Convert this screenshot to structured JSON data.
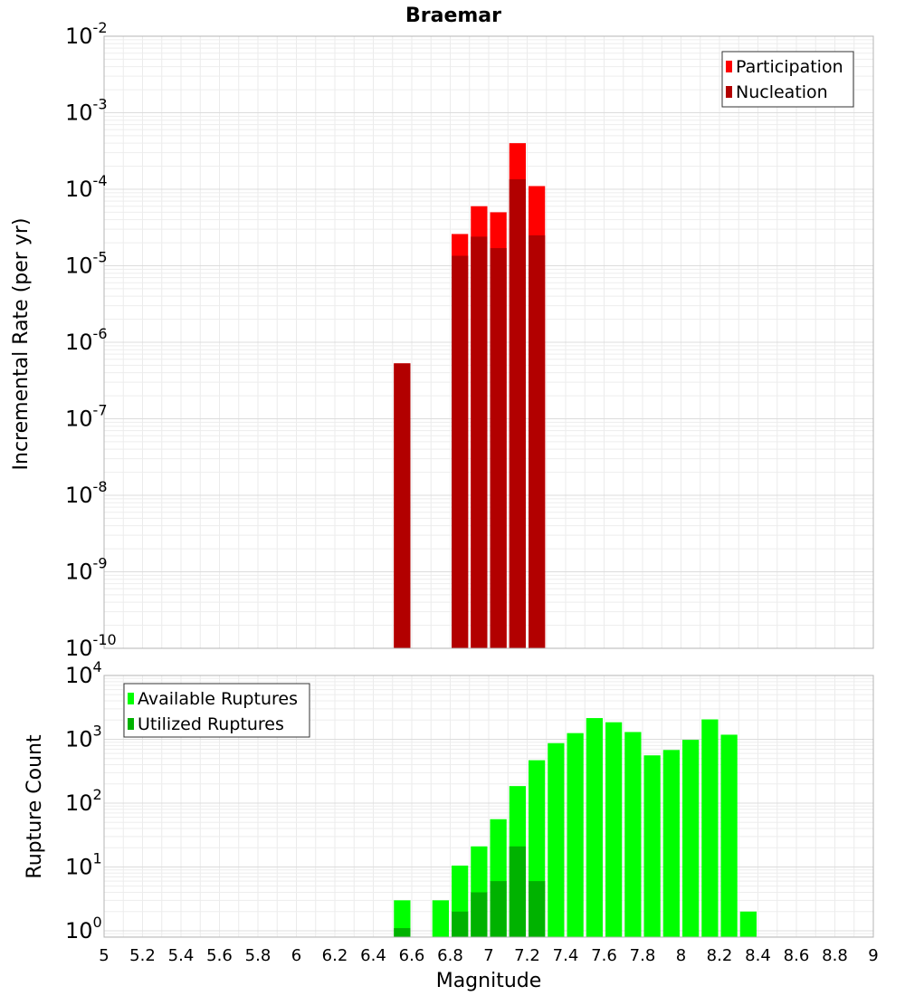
{
  "chart_data": {
    "type": "bar",
    "title": "Braemar",
    "xlabel": "Magnitude",
    "xlim": [
      5,
      9
    ],
    "x_ticks": [
      "5",
      "5.2",
      "5.4",
      "5.6",
      "5.8",
      "6",
      "6.2",
      "6.4",
      "6.6",
      "6.8",
      "7",
      "7.2",
      "7.4",
      "7.6",
      "7.8",
      "8",
      "8.2",
      "8.4",
      "8.6",
      "8.8",
      "9"
    ],
    "bin_width": 0.1,
    "panels": [
      {
        "name": "rate",
        "ylabel": "Incremental Rate (per yr)",
        "yscale": "log",
        "ylim_exponents": [
          -10,
          -2
        ],
        "y_tick_base": "10",
        "y_tick_exponents": [
          "-10",
          "-9",
          "-8",
          "-7",
          "-6",
          "-5",
          "-4",
          "-3",
          "-2"
        ],
        "grid": true,
        "legend_position": "top-right",
        "series": [
          {
            "name": "Participation",
            "color": "#ff0000",
            "points": [
              {
                "x": 6.55,
                "y": 5.3e-07
              },
              {
                "x": 6.85,
                "y": 2.6e-05
              },
              {
                "x": 6.95,
                "y": 6e-05
              },
              {
                "x": 7.05,
                "y": 5e-05
              },
              {
                "x": 7.15,
                "y": 0.0004
              },
              {
                "x": 7.25,
                "y": 0.00011
              }
            ]
          },
          {
            "name": "Nucleation",
            "color": "#b20000",
            "points": [
              {
                "x": 6.55,
                "y": 5.3e-07
              },
              {
                "x": 6.85,
                "y": 1.35e-05
              },
              {
                "x": 6.95,
                "y": 2.4e-05
              },
              {
                "x": 7.05,
                "y": 1.7e-05
              },
              {
                "x": 7.15,
                "y": 0.000135
              },
              {
                "x": 7.25,
                "y": 2.5e-05
              }
            ]
          }
        ]
      },
      {
        "name": "count",
        "ylabel": "Rupture Count",
        "yscale": "log",
        "ylim_exponents": [
          -0.1,
          4
        ],
        "y_tick_base": "10",
        "y_tick_exponents": [
          "0",
          "1",
          "2",
          "3",
          "4"
        ],
        "grid": true,
        "legend_position": "top-left",
        "series": [
          {
            "name": "Available Ruptures",
            "color": "#00ff00",
            "points": [
              {
                "x": 6.55,
                "y": 3
              },
              {
                "x": 6.75,
                "y": 3
              },
              {
                "x": 6.85,
                "y": 10.5
              },
              {
                "x": 6.95,
                "y": 21
              },
              {
                "x": 7.05,
                "y": 56
              },
              {
                "x": 7.15,
                "y": 185
              },
              {
                "x": 7.25,
                "y": 470
              },
              {
                "x": 7.35,
                "y": 870
              },
              {
                "x": 7.45,
                "y": 1250
              },
              {
                "x": 7.55,
                "y": 2150
              },
              {
                "x": 7.65,
                "y": 1850
              },
              {
                "x": 7.75,
                "y": 1300
              },
              {
                "x": 7.85,
                "y": 560
              },
              {
                "x": 7.95,
                "y": 680
              },
              {
                "x": 8.05,
                "y": 980
              },
              {
                "x": 8.15,
                "y": 2050
              },
              {
                "x": 8.25,
                "y": 1180
              },
              {
                "x": 8.35,
                "y": 2
              }
            ]
          },
          {
            "name": "Utilized Ruptures",
            "color": "#00b200",
            "points": [
              {
                "x": 6.55,
                "y": 1.1
              },
              {
                "x": 6.85,
                "y": 2
              },
              {
                "x": 6.95,
                "y": 4
              },
              {
                "x": 7.05,
                "y": 6
              },
              {
                "x": 7.15,
                "y": 21
              },
              {
                "x": 7.25,
                "y": 6
              }
            ]
          }
        ]
      }
    ]
  }
}
